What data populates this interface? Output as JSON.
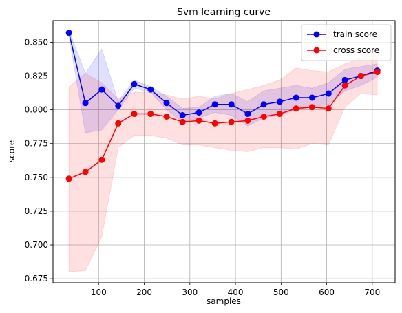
{
  "chart_data": {
    "type": "line",
    "title": "Svm learning curve",
    "xlabel": "samples",
    "ylabel": "score",
    "xlim": [
      0,
      750
    ],
    "ylim": [
      0.672,
      0.866
    ],
    "x_ticks": [
      100,
      200,
      300,
      400,
      500,
      600,
      700
    ],
    "y_ticks": [
      0.675,
      0.7,
      0.725,
      0.75,
      0.775,
      0.8,
      0.825,
      0.85
    ],
    "y_tick_labels": [
      "0.675",
      "0.700",
      "0.725",
      "0.750",
      "0.775",
      "0.800",
      "0.825",
      "0.850"
    ],
    "grid": true,
    "legend_position": "top-right",
    "x": [
      35,
      71,
      107,
      143,
      178,
      214,
      249,
      284,
      320,
      355,
      391,
      427,
      462,
      497,
      533,
      568,
      604,
      640,
      675,
      711
    ],
    "series": [
      {
        "name": "train score",
        "color": "#0000ff",
        "band_color": "#0000ff",
        "values": [
          0.857,
          0.805,
          0.815,
          0.803,
          0.819,
          0.815,
          0.805,
          0.796,
          0.798,
          0.804,
          0.804,
          0.797,
          0.804,
          0.806,
          0.809,
          0.809,
          0.812,
          0.822,
          0.825,
          0.829
        ],
        "band_upper": [
          0.859,
          0.827,
          0.845,
          0.806,
          0.822,
          0.817,
          0.81,
          0.801,
          0.802,
          0.81,
          0.812,
          0.806,
          0.814,
          0.816,
          0.818,
          0.816,
          0.82,
          0.83,
          0.832,
          0.834
        ],
        "band_lower": [
          0.855,
          0.783,
          0.785,
          0.8,
          0.816,
          0.813,
          0.8,
          0.791,
          0.794,
          0.798,
          0.796,
          0.788,
          0.794,
          0.796,
          0.8,
          0.802,
          0.804,
          0.814,
          0.818,
          0.824
        ]
      },
      {
        "name": "cross score",
        "color": "#ff0000",
        "band_color": "#ff0000",
        "values": [
          0.749,
          0.754,
          0.763,
          0.79,
          0.797,
          0.797,
          0.795,
          0.791,
          0.792,
          0.79,
          0.791,
          0.792,
          0.795,
          0.797,
          0.801,
          0.802,
          0.801,
          0.818,
          0.825,
          0.828
        ],
        "band_upper": [
          0.817,
          0.827,
          0.82,
          0.808,
          0.813,
          0.813,
          0.811,
          0.808,
          0.81,
          0.808,
          0.812,
          0.815,
          0.818,
          0.822,
          0.831,
          0.829,
          0.828,
          0.834,
          0.838,
          0.845
        ],
        "band_lower": [
          0.68,
          0.681,
          0.706,
          0.772,
          0.781,
          0.781,
          0.779,
          0.774,
          0.774,
          0.772,
          0.77,
          0.769,
          0.772,
          0.772,
          0.771,
          0.775,
          0.774,
          0.802,
          0.812,
          0.811
        ]
      }
    ]
  }
}
